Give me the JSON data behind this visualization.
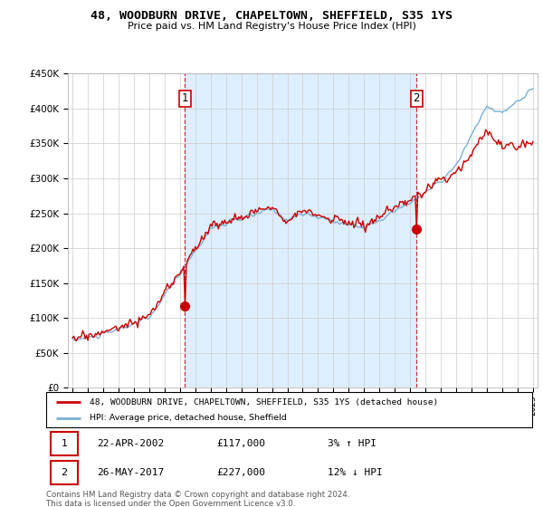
{
  "title": "48, WOODBURN DRIVE, CHAPELTOWN, SHEFFIELD, S35 1YS",
  "subtitle": "Price paid vs. HM Land Registry's House Price Index (HPI)",
  "property_label": "48, WOODBURN DRIVE, CHAPELTOWN, SHEFFIELD, S35 1YS (detached house)",
  "hpi_label": "HPI: Average price, detached house, Sheffield",
  "sale1_date": "22-APR-2002",
  "sale1_price": 117000,
  "sale1_hpi": "3% ↑ HPI",
  "sale2_date": "26-MAY-2017",
  "sale2_price": 227000,
  "sale2_hpi": "12% ↓ HPI",
  "footer": "Contains HM Land Registry data © Crown copyright and database right 2024.\nThis data is licensed under the Open Government Licence v3.0.",
  "property_color": "#cc0000",
  "hpi_color": "#7ab0d4",
  "shade_color": "#ddeeff",
  "vline_color": "#cc0000",
  "background_color": "#ffffff",
  "ylim_min": 0,
  "ylim_max": 450000
}
